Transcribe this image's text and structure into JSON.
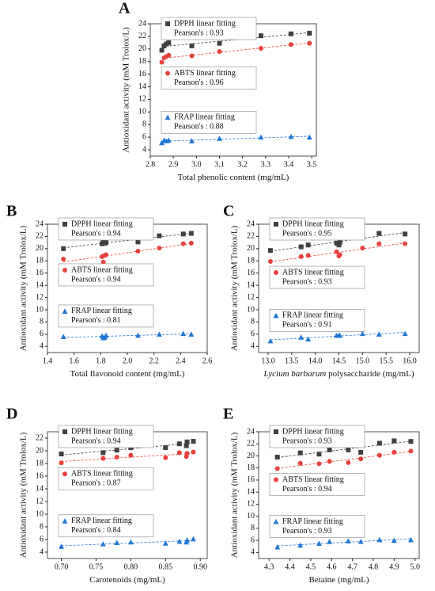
{
  "chart_data": [
    {
      "type": "scatter",
      "label": "A",
      "x_label": "Total phenolic content (mg/mL)",
      "y_label": "Antioxidant activity (mM Trolox/L)",
      "xlim": [
        2.8,
        3.52
      ],
      "xticks": [
        {
          "value": 2.8,
          "label": "2.8"
        },
        2.9,
        {
          "value": 3.0,
          "label": "3.0"
        },
        3.1,
        3.2,
        3.3,
        3.4,
        3.5
      ],
      "ylim": [
        3,
        24
      ],
      "yticks": [
        4,
        6,
        8,
        10,
        12,
        14,
        16,
        18,
        20,
        22,
        24
      ],
      "series": [
        {
          "name": "DPPH linear fitting",
          "pearson": "Pearson's : 0.93",
          "color": "#404040",
          "marker": "square",
          "x": [
            2.85,
            2.86,
            2.87,
            2.88,
            2.98,
            3.1,
            3.28,
            3.41,
            3.49
          ],
          "values": [
            19.8,
            20.5,
            20.8,
            21,
            20.5,
            20.9,
            22.1,
            22.4,
            22.5
          ]
        },
        {
          "name": "ABTS linear fitting",
          "pearson": "Pearson's : 0.96",
          "color": "#e8413c",
          "marker": "circle",
          "x": [
            2.85,
            2.86,
            2.87,
            2.88,
            2.98,
            3.1,
            3.28,
            3.41,
            3.49
          ],
          "values": [
            17.9,
            18.6,
            18.8,
            19,
            18.9,
            19.6,
            20.1,
            20.7,
            20.9
          ]
        },
        {
          "name": "FRAP linear fitting",
          "pearson": "Pearson's : 0.88",
          "color": "#1f77d4",
          "marker": "triangle",
          "x": [
            2.85,
            2.86,
            2.87,
            2.88,
            2.98,
            3.1,
            3.28,
            3.41,
            3.49
          ],
          "values": [
            5.1,
            5.5,
            5.4,
            5.5,
            5.4,
            5.8,
            6.0,
            6.1,
            6.0
          ]
        }
      ]
    },
    {
      "type": "scatter",
      "label": "B",
      "x_label": "Total flavonoid content (mg/mL)",
      "y_label": "Antioxidant activity (mM Trolox/L)",
      "xlim": [
        1.4,
        2.6
      ],
      "xticks": [
        1.4,
        1.6,
        1.8,
        {
          "value": 2.0,
          "label": "2.0"
        },
        2.2,
        2.4,
        2.6
      ],
      "ylim": [
        3,
        24
      ],
      "yticks": [
        4,
        6,
        8,
        10,
        12,
        14,
        16,
        18,
        20,
        22,
        24
      ],
      "series": [
        {
          "name": "DPPH linear fitting",
          "pearson": "Pearson's : 0.94",
          "color": "#404040",
          "marker": "square",
          "x": [
            1.52,
            1.81,
            1.82,
            1.83,
            1.84,
            2.08,
            2.24,
            2.42,
            2.48
          ],
          "values": [
            20,
            20.8,
            21.3,
            20.9,
            21,
            21.1,
            22.1,
            22.4,
            22.5
          ]
        },
        {
          "name": "ABTS linear fitting",
          "pearson": "Pearson's : 0.94",
          "color": "#e8413c",
          "marker": "circle",
          "x": [
            1.52,
            1.81,
            1.82,
            1.83,
            1.84,
            2.08,
            2.24,
            2.42,
            2.48
          ],
          "values": [
            18.3,
            18.7,
            17.8,
            18.9,
            19,
            19.6,
            20.1,
            20.8,
            20.9
          ]
        },
        {
          "name": "FRAP linear fitting",
          "pearson": "Pearson's : 0.81",
          "color": "#1f77d4",
          "marker": "triangle",
          "x": [
            1.52,
            1.81,
            1.82,
            1.83,
            1.84,
            2.08,
            2.24,
            2.42,
            2.48
          ],
          "values": [
            5.6,
            5.7,
            5.4,
            5.5,
            5.8,
            5.8,
            6.0,
            6.1,
            6.0
          ]
        }
      ]
    },
    {
      "type": "scatter",
      "label": "C",
      "x_label_italic": "Lycium barbarum",
      "x_label": " polysaccharide (mg/mL)",
      "y_label": "Antioxidant activity (mM Trolox/L)",
      "xlim": [
        12.8,
        16.2
      ],
      "xticks": [
        {
          "value": 13,
          "label": "13.0"
        },
        13.5,
        {
          "value": 14,
          "label": "14.0"
        },
        14.5,
        {
          "value": 15,
          "label": "15.0"
        },
        15.5,
        {
          "value": 16,
          "label": "16.0"
        }
      ],
      "ylim": [
        3,
        24
      ],
      "yticks": [
        4,
        6,
        8,
        10,
        12,
        14,
        16,
        18,
        20,
        22,
        24
      ],
      "series": [
        {
          "name": "DPPH linear fitting",
          "pearson": "Pearson's : 0.95",
          "color": "#404040",
          "marker": "square",
          "x": [
            13.05,
            13.7,
            13.85,
            14.45,
            14.5,
            14.52,
            15.0,
            15.35,
            15.9
          ],
          "values": [
            19.7,
            20.3,
            20.6,
            20.9,
            20.6,
            21,
            22.1,
            22.5,
            22.4
          ]
        },
        {
          "name": "ABTS linear fitting",
          "pearson": "Pearson's : 0.93",
          "color": "#e8413c",
          "marker": "circle",
          "x": [
            13.05,
            13.7,
            13.85,
            14.45,
            14.5,
            14.52,
            15.0,
            15.35,
            15.9
          ],
          "values": [
            17.9,
            18.7,
            18.9,
            19.5,
            18.8,
            19.0,
            20.1,
            20.8,
            20.8
          ]
        },
        {
          "name": "FRAP linear fitting",
          "pearson": "Pearson's : 0.91",
          "color": "#1f77d4",
          "marker": "triangle",
          "x": [
            13.05,
            13.7,
            13.85,
            14.45,
            14.5,
            14.52,
            15.0,
            15.35,
            15.9
          ],
          "values": [
            4.9,
            5.5,
            5.2,
            5.8,
            5.8,
            5.8,
            6.1,
            6.0,
            6.1
          ]
        }
      ]
    },
    {
      "type": "scatter",
      "label": "D",
      "x_label": "Carotenoids (mg/mL)",
      "y_label": "Antioxidant activity (mM Trolox/L)",
      "xlim": [
        0.68,
        0.91
      ],
      "xticks": [
        {
          "value": 0.7,
          "label": "0.70"
        },
        0.75,
        {
          "value": 0.8,
          "label": "0.80"
        },
        0.85,
        {
          "value": 0.9,
          "label": "0.90"
        }
      ],
      "ylim": [
        3,
        23
      ],
      "yticks": [
        4,
        6,
        8,
        10,
        12,
        14,
        16,
        18,
        20,
        22
      ],
      "series": [
        {
          "name": "DPPH linear fitting",
          "pearson": "Pearson's : 0.94",
          "color": "#404040",
          "marker": "square",
          "x": [
            0.7,
            0.76,
            0.78,
            0.8,
            0.85,
            0.87,
            0.88,
            0.881,
            0.89
          ],
          "values": [
            19.5,
            19.7,
            20.1,
            20.5,
            20.5,
            21.1,
            20.8,
            21.4,
            21.5
          ]
        },
        {
          "name": "ABTS linear fitting",
          "pearson": "Pearson's : 0.87",
          "color": "#e8413c",
          "marker": "circle",
          "x": [
            0.7,
            0.76,
            0.78,
            0.8,
            0.85,
            0.87,
            0.88,
            0.881,
            0.89
          ],
          "values": [
            18.1,
            18.8,
            19,
            19.3,
            18.9,
            19.7,
            19.1,
            19.6,
            19.8
          ]
        },
        {
          "name": "FRAP linear fitting",
          "pearson": "Pearson's : 0.84",
          "color": "#1f77d4",
          "marker": "triangle",
          "x": [
            0.7,
            0.76,
            0.78,
            0.8,
            0.85,
            0.87,
            0.88,
            0.881,
            0.89
          ],
          "values": [
            4.9,
            5.3,
            5.5,
            5.6,
            5.4,
            5.7,
            5.6,
            5.9,
            6.1
          ]
        }
      ]
    },
    {
      "type": "scatter",
      "label": "E",
      "x_label": "Betaine (mg/mL)",
      "y_label": "Antioxidant activity (mM Trolox/L)",
      "xlim": [
        4.25,
        5.02
      ],
      "xticks": [
        4.3,
        4.4,
        4.5,
        4.6,
        4.7,
        4.8,
        4.9,
        {
          "value": 5.0,
          "label": "5.0"
        }
      ],
      "ylim": [
        3,
        24
      ],
      "yticks": [
        4,
        6,
        8,
        10,
        12,
        14,
        16,
        18,
        20,
        22,
        24
      ],
      "series": [
        {
          "name": "DPPH linear fitting",
          "pearson": "Pearson's : 0.93",
          "color": "#404040",
          "marker": "square",
          "x": [
            4.34,
            4.45,
            4.54,
            4.59,
            4.68,
            4.74,
            4.83,
            4.9,
            4.98
          ],
          "values": [
            19.8,
            20.5,
            20.3,
            21.0,
            21.0,
            20.6,
            22.1,
            22.5,
            22.4
          ]
        },
        {
          "name": "ABTS linear fitting",
          "pearson": "Pearson's : 0.94",
          "color": "#e8413c",
          "marker": "circle",
          "x": [
            4.34,
            4.45,
            4.54,
            4.59,
            4.68,
            4.74,
            4.83,
            4.9,
            4.98
          ],
          "values": [
            17.9,
            18.8,
            18.7,
            19.1,
            18.9,
            19.5,
            20.1,
            20.6,
            20.8
          ]
        },
        {
          "name": "FRAP linear fitting",
          "pearson": "Pearson's : 0.93",
          "color": "#1f77d4",
          "marker": "triangle",
          "x": [
            4.34,
            4.45,
            4.54,
            4.59,
            4.68,
            4.74,
            4.83,
            4.9,
            4.98
          ],
          "values": [
            4.9,
            5.2,
            5.5,
            5.8,
            5.9,
            5.8,
            6.1,
            6.0,
            6.1
          ]
        }
      ]
    }
  ]
}
